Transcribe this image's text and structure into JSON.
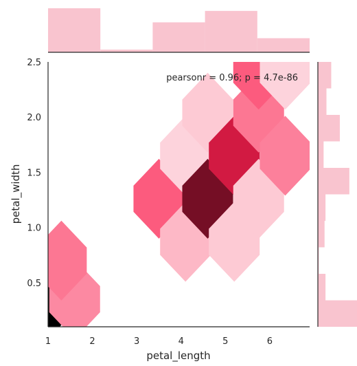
{
  "chart_data": {
    "type": "hexbin",
    "xlabel": "petal_length",
    "ylabel": "petal_width",
    "xlim": [
      1.0,
      6.9
    ],
    "ylim": [
      0.1,
      2.5
    ],
    "xticks": [
      1,
      2,
      3,
      4,
      5,
      6
    ],
    "yticks": [
      0.5,
      1.0,
      1.5,
      2.0,
      2.5
    ],
    "x_tick_labels": [
      "1",
      "2",
      "3",
      "4",
      "5",
      "6"
    ],
    "y_tick_labels": [
      "0.5",
      "1.0",
      "1.5",
      "2.0",
      "2.5"
    ],
    "annotation": "pearsonr = 0.96; p = 4.7e-86",
    "grid": false,
    "colors": {
      "base": "#fb1f4f",
      "light": "#fde6ea",
      "dark": "#000000",
      "marginal": "#f9c4cf",
      "axis": "#262626"
    },
    "hexbins": [
      {
        "x": 1.0,
        "y": 0.35,
        "count": 43
      },
      {
        "x": 1.6,
        "y": 0.35,
        "count": 10
      },
      {
        "x": 1.3,
        "y": 0.7,
        "count": 12
      },
      {
        "x": 3.5,
        "y": 1.26,
        "count": 15
      },
      {
        "x": 4.1,
        "y": 0.87,
        "count": 5
      },
      {
        "x": 4.1,
        "y": 1.65,
        "count": 2
      },
      {
        "x": 4.6,
        "y": 1.26,
        "count": 33
      },
      {
        "x": 4.6,
        "y": 2.04,
        "count": 3
      },
      {
        "x": 5.2,
        "y": 1.65,
        "count": 25
      },
      {
        "x": 5.2,
        "y": 0.87,
        "count": 3
      },
      {
        "x": 5.75,
        "y": 1.26,
        "count": 3
      },
      {
        "x": 5.75,
        "y": 2.04,
        "count": 12
      },
      {
        "x": 5.75,
        "y": 2.43,
        "count": 15
      },
      {
        "x": 6.35,
        "y": 1.65,
        "count": 11
      },
      {
        "x": 6.35,
        "y": 2.43,
        "count": 2
      }
    ],
    "marginal_x": {
      "bin_edges": [
        1.0,
        2.18,
        3.36,
        4.54,
        5.72,
        6.9
      ],
      "counts": [
        50,
        3,
        34,
        47,
        16
      ]
    },
    "marginal_y": {
      "bin_edges": [
        0.1,
        0.34,
        0.58,
        0.82,
        1.06,
        1.3,
        1.54,
        1.78,
        2.02,
        2.26,
        2.5
      ],
      "counts": [
        41,
        8,
        1,
        7,
        8,
        33,
        6,
        23,
        9,
        14
      ]
    }
  }
}
